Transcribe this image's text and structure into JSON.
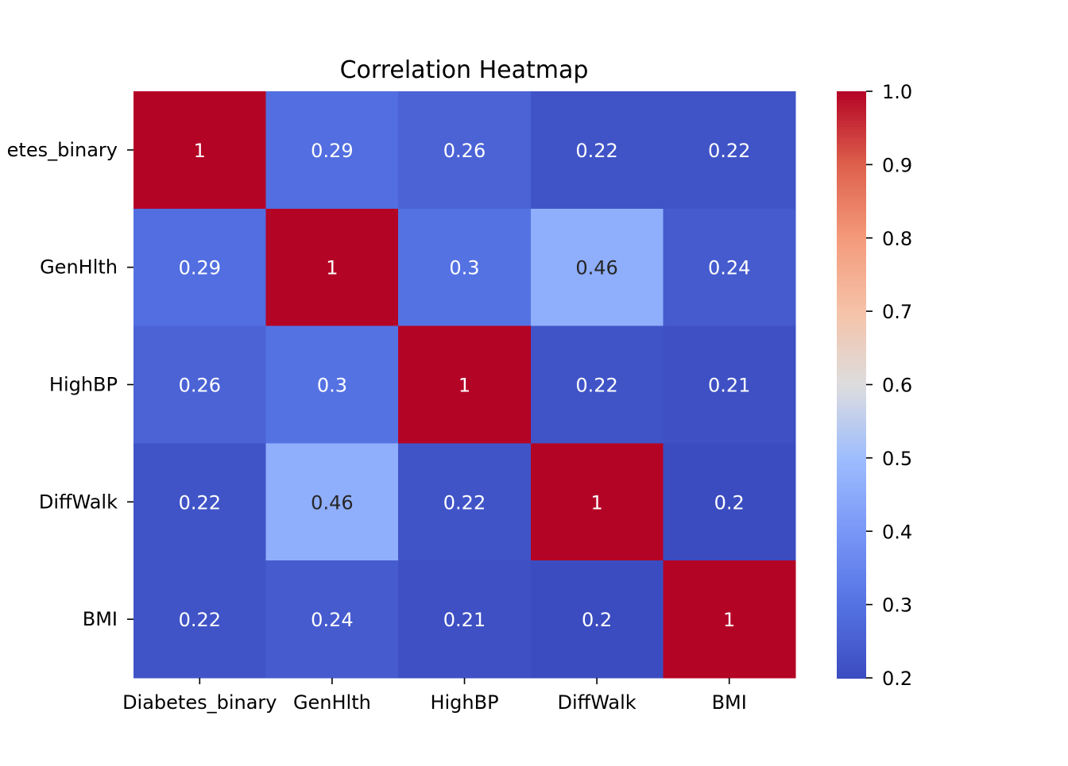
{
  "chart_data": {
    "type": "heatmap",
    "title": "Correlation Heatmap",
    "rows": [
      "Diabetes_binary",
      "GenHlth",
      "HighBP",
      "DiffWalk",
      "BMI"
    ],
    "row_tick_labels_visible": [
      "etes_binary",
      "GenHlth",
      "HighBP",
      "DiffWalk",
      "BMI"
    ],
    "columns": [
      "Diabetes_binary",
      "GenHlth",
      "HighBP",
      "DiffWalk",
      "BMI"
    ],
    "values": [
      [
        1.0,
        0.29,
        0.26,
        0.22,
        0.22
      ],
      [
        0.29,
        1.0,
        0.3,
        0.46,
        0.24
      ],
      [
        0.26,
        0.3,
        1.0,
        0.22,
        0.21
      ],
      [
        0.22,
        0.46,
        0.22,
        1.0,
        0.2
      ],
      [
        0.22,
        0.24,
        0.21,
        0.2,
        1.0
      ]
    ],
    "annotations": [
      [
        "1",
        "0.29",
        "0.26",
        "0.22",
        "0.22"
      ],
      [
        "0.29",
        "1",
        "0.3",
        "0.46",
        "0.24"
      ],
      [
        "0.26",
        "0.3",
        "1",
        "0.22",
        "0.21"
      ],
      [
        "0.22",
        "0.46",
        "0.22",
        "1",
        "0.2"
      ],
      [
        "0.22",
        "0.24",
        "0.21",
        "0.2",
        "1"
      ]
    ],
    "colorbar": {
      "range": [
        0.2,
        1.0
      ],
      "ticks": [
        0.2,
        0.3,
        0.4,
        0.5,
        0.6,
        0.7,
        0.8,
        0.9,
        1.0
      ],
      "tick_labels": [
        "0.2",
        "0.3",
        "0.4",
        "0.5",
        "0.6",
        "0.7",
        "0.8",
        "0.9",
        "1.0"
      ],
      "colormap": "coolwarm",
      "placement": "right"
    },
    "colors": {
      "low": "#3b4cc0",
      "mid": "#dddddd",
      "high": "#b40426",
      "text_light": "#ffffff",
      "text_dark": "#262626"
    }
  }
}
